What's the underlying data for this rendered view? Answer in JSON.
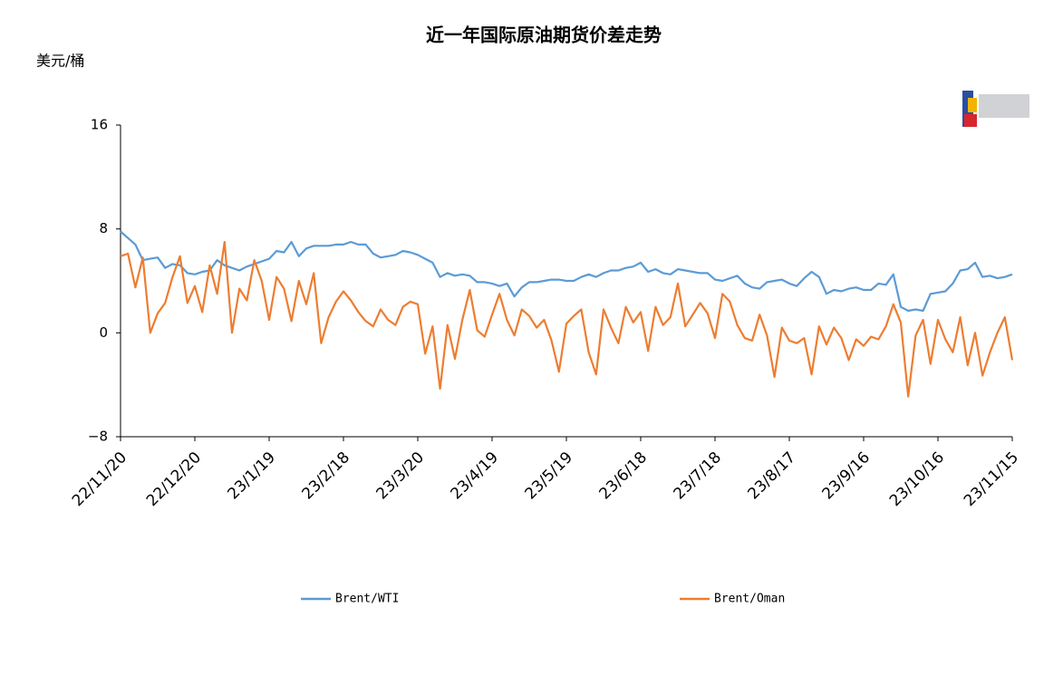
{
  "chart_data": {
    "type": "line",
    "title": "近一年国际原油期货价差走势",
    "y_label": "美元/桶",
    "categories": [
      "22/11/20",
      null,
      null,
      null,
      null,
      null,
      null,
      null,
      null,
      null,
      "22/12/20",
      null,
      null,
      null,
      null,
      null,
      null,
      null,
      null,
      null,
      "23/1/19",
      null,
      null,
      null,
      null,
      null,
      null,
      null,
      null,
      null,
      "23/2/18",
      null,
      null,
      null,
      null,
      null,
      null,
      null,
      null,
      null,
      "23/3/20",
      null,
      null,
      null,
      null,
      null,
      null,
      null,
      null,
      null,
      "23/4/19",
      null,
      null,
      null,
      null,
      null,
      null,
      null,
      null,
      null,
      "23/5/19",
      null,
      null,
      null,
      null,
      null,
      null,
      null,
      null,
      null,
      "23/6/18",
      null,
      null,
      null,
      null,
      null,
      null,
      null,
      null,
      null,
      "23/7/18",
      null,
      null,
      null,
      null,
      null,
      null,
      null,
      null,
      null,
      "23/8/17",
      null,
      null,
      null,
      null,
      null,
      null,
      null,
      null,
      null,
      "23/9/16",
      null,
      null,
      null,
      null,
      null,
      null,
      null,
      null,
      null,
      "23/10/16",
      null,
      null,
      null,
      null,
      null,
      null,
      null,
      null,
      null,
      "23/11/15"
    ],
    "series": [
      {
        "name": "Brent/WTI",
        "color": "#5b9bd5",
        "values": [
          7.8,
          7.3,
          6.8,
          5.6,
          5.7,
          5.8,
          5.0,
          5.3,
          5.2,
          4.6,
          4.5,
          4.7,
          4.8,
          5.6,
          5.2,
          5.0,
          4.8,
          5.1,
          5.3,
          5.5,
          5.7,
          6.3,
          6.2,
          7.0,
          5.9,
          6.5,
          6.7,
          6.7,
          6.7,
          6.8,
          6.8,
          7.0,
          6.8,
          6.8,
          6.1,
          5.8,
          5.9,
          6.0,
          6.3,
          6.2,
          6.0,
          5.7,
          5.4,
          4.3,
          4.6,
          4.4,
          4.5,
          4.4,
          3.9,
          3.9,
          3.8,
          3.6,
          3.8,
          2.8,
          3.5,
          3.9,
          3.9,
          4.0,
          4.1,
          4.1,
          4.0,
          4.0,
          4.3,
          4.5,
          4.3,
          4.6,
          4.8,
          4.8,
          5.0,
          5.1,
          5.4,
          4.7,
          4.9,
          4.6,
          4.5,
          4.9,
          4.8,
          4.7,
          4.6,
          4.6,
          4.1,
          4.0,
          4.2,
          4.4,
          3.8,
          3.5,
          3.4,
          3.9,
          4.0,
          4.1,
          3.8,
          3.6,
          4.2,
          4.7,
          4.3,
          3.0,
          3.3,
          3.2,
          3.4,
          3.5,
          3.3,
          3.3,
          3.8,
          3.7,
          4.5,
          2.0,
          1.7,
          1.8,
          1.7,
          3.0,
          3.1,
          3.2,
          3.8,
          4.8,
          4.9,
          5.4,
          4.3,
          4.4,
          4.2,
          4.3,
          4.5
        ]
      },
      {
        "name": "Brent/Oman",
        "color": "#ed7d31",
        "values": [
          5.9,
          6.1,
          3.5,
          5.8,
          0.0,
          1.5,
          2.3,
          4.3,
          5.9,
          2.3,
          3.6,
          1.6,
          5.2,
          3.0,
          7.0,
          0.0,
          3.4,
          2.5,
          5.6,
          4.0,
          1.0,
          4.3,
          3.4,
          0.9,
          4.0,
          2.2,
          4.6,
          -0.8,
          1.2,
          2.4,
          3.2,
          2.5,
          1.6,
          0.9,
          0.5,
          1.8,
          1.0,
          0.6,
          2.0,
          2.4,
          2.2,
          -1.6,
          0.5,
          -4.3,
          0.6,
          -2.0,
          1.0,
          3.3,
          0.2,
          -0.3,
          1.4,
          3.0,
          1.0,
          -0.2,
          1.8,
          1.3,
          0.4,
          1.0,
          -0.6,
          -3.0,
          0.7,
          1.3,
          1.8,
          -1.5,
          -3.2,
          1.8,
          0.4,
          -0.8,
          2.0,
          0.8,
          1.6,
          -1.4,
          2.0,
          0.6,
          1.2,
          3.8,
          0.5,
          1.4,
          2.3,
          1.5,
          -0.4,
          3.0,
          2.4,
          0.6,
          -0.4,
          -0.6,
          1.4,
          -0.2,
          -3.4,
          0.4,
          -0.6,
          -0.8,
          -0.4,
          -3.2,
          0.5,
          -0.9,
          0.4,
          -0.4,
          -2.1,
          -0.5,
          -1.0,
          -0.3,
          -0.5,
          0.5,
          2.2,
          0.8,
          -4.9,
          -0.2,
          1.0,
          -2.4,
          1.0,
          -0.5,
          -1.5,
          1.2,
          -2.5,
          0.0,
          -3.3,
          -1.5,
          0.0,
          1.2,
          -2.1
        ]
      }
    ],
    "ylim": [
      -8,
      16
    ],
    "yticks": [
      {
        "value": -8,
        "label": "−8"
      },
      0,
      8,
      16
    ],
    "grid": false
  }
}
